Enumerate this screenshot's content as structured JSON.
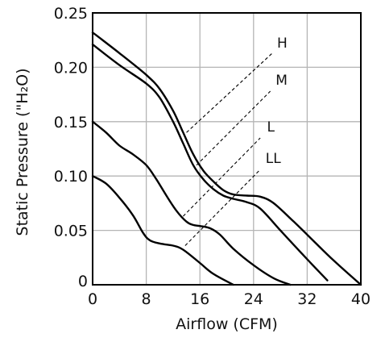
{
  "chart_data": {
    "type": "line",
    "xlabel": "Airflow (CFM)",
    "ylabel": "Static Pressure (\"H₂O)",
    "xlim": [
      0,
      40
    ],
    "ylim": [
      0,
      0.25
    ],
    "x_ticks": [
      0,
      8,
      16,
      24,
      32,
      40
    ],
    "y_ticks": [
      0,
      0.05,
      0.1,
      0.15,
      0.2,
      0.25
    ],
    "x_tick_labels": [
      "0",
      "8",
      "16",
      "24",
      "32",
      "40"
    ],
    "y_tick_labels": [
      "0",
      "0.05",
      "0.10",
      "0.15",
      "0.20",
      "0.25"
    ],
    "grid": true,
    "series": [
      {
        "name": "H",
        "x": [
          0,
          4,
          8,
          10,
          12,
          13.5,
          15,
          16.5,
          18,
          19.5,
          21,
          23,
          25,
          27,
          30,
          33,
          36,
          40
        ],
        "y": [
          0.232,
          0.213,
          0.193,
          0.18,
          0.16,
          0.14,
          0.12,
          0.105,
          0.095,
          0.087,
          0.083,
          0.082,
          0.081,
          0.075,
          0.058,
          0.04,
          0.022,
          0
        ]
      },
      {
        "name": "M",
        "x": [
          0,
          4,
          8,
          10,
          12,
          13.5,
          15,
          16.5,
          18,
          19.5,
          21,
          23,
          25,
          28,
          31,
          35
        ],
        "y": [
          0.221,
          0.202,
          0.185,
          0.172,
          0.15,
          0.13,
          0.11,
          0.097,
          0.088,
          0.082,
          0.079,
          0.076,
          0.07,
          0.05,
          0.03,
          0.004
        ]
      },
      {
        "name": "L",
        "x": [
          0,
          2,
          4,
          6,
          8,
          9.5,
          11,
          12.5,
          14,
          15,
          16,
          17.5,
          19,
          21,
          24,
          27,
          29.5
        ],
        "y": [
          0.15,
          0.14,
          0.128,
          0.12,
          0.11,
          0.097,
          0.082,
          0.068,
          0.058,
          0.055,
          0.054,
          0.052,
          0.046,
          0.033,
          0.018,
          0.006,
          0
        ]
      },
      {
        "name": "LL",
        "x": [
          0,
          2,
          4,
          6,
          7.5,
          8.5,
          10,
          12,
          13,
          14,
          16,
          18,
          21
        ],
        "y": [
          0.1,
          0.093,
          0.08,
          0.064,
          0.048,
          0.041,
          0.038,
          0.036,
          0.034,
          0.03,
          0.02,
          0.01,
          0
        ]
      }
    ],
    "annotations": [
      {
        "text": "H",
        "x": 27.5,
        "y": 0.218,
        "leader_from": [
          14.0,
          0.14
        ],
        "leader_to": [
          26.8,
          0.213
        ]
      },
      {
        "text": "M",
        "x": 27.3,
        "y": 0.184,
        "leader_from": [
          15.5,
          0.11
        ],
        "leader_to": [
          26.5,
          0.178
        ]
      },
      {
        "text": "L",
        "x": 26.0,
        "y": 0.141,
        "leader_from": [
          13.5,
          0.063
        ],
        "leader_to": [
          25.0,
          0.135
        ]
      },
      {
        "text": "LL",
        "x": 25.8,
        "y": 0.112,
        "leader_from": [
          13.8,
          0.036
        ],
        "leader_to": [
          25.0,
          0.106
        ]
      }
    ]
  }
}
